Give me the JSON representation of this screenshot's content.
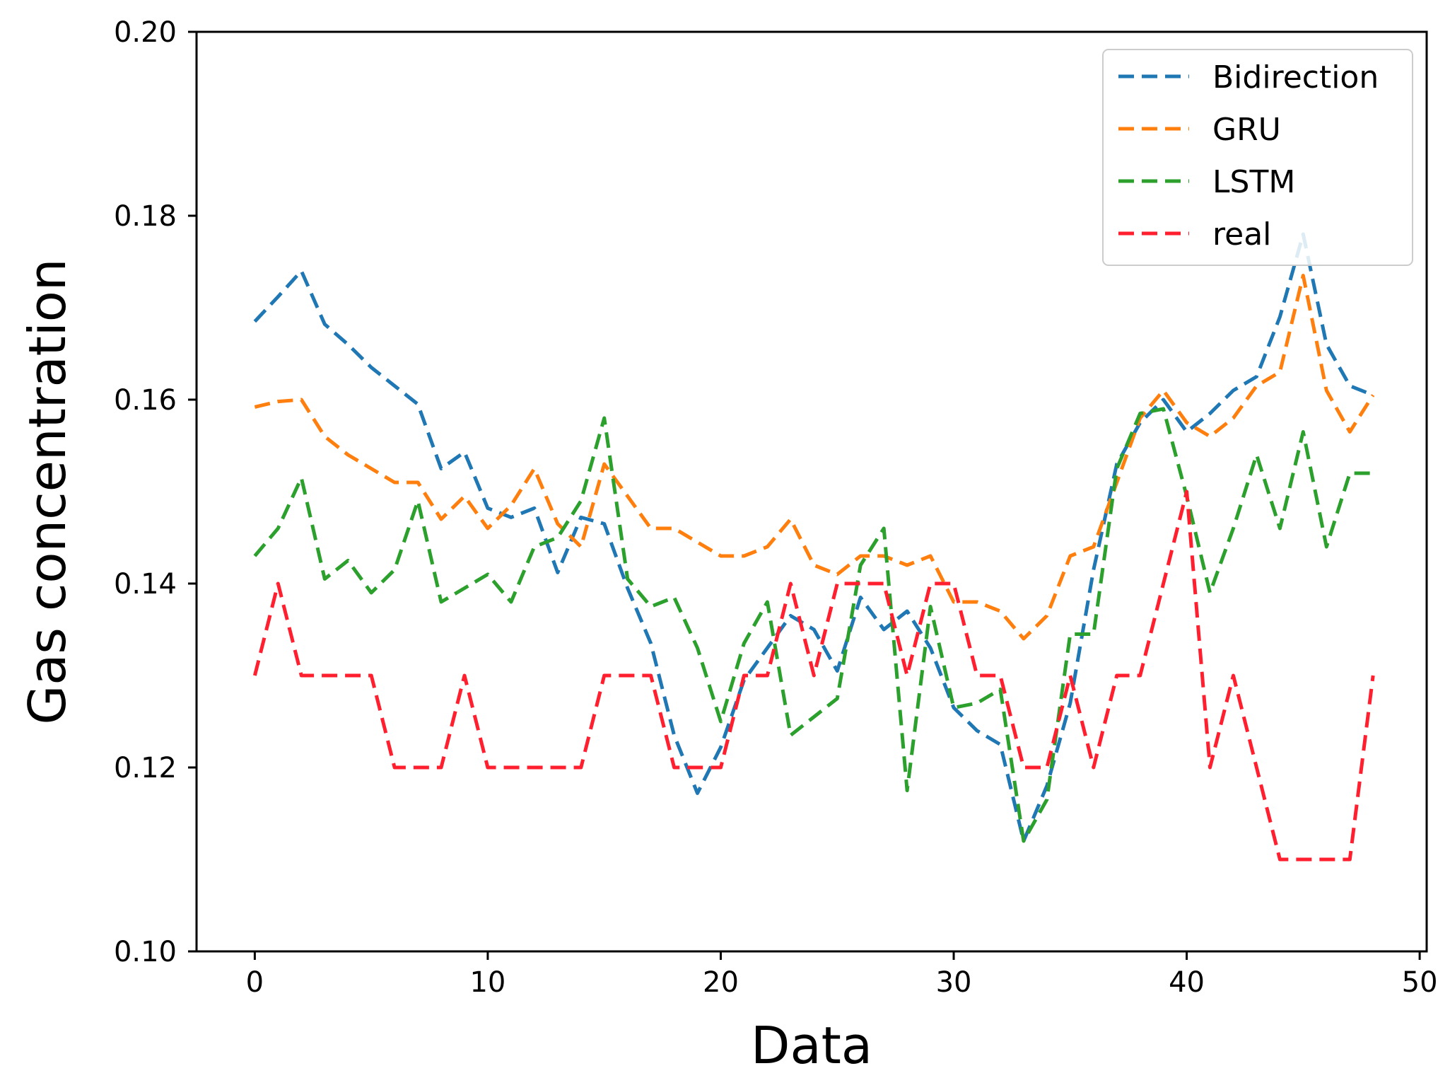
{
  "chart_data": {
    "type": "line",
    "title": "",
    "xlabel": "Data",
    "ylabel": "Gas concentration",
    "xlim": [
      -2.5,
      50.3
    ],
    "ylim": [
      0.1,
      0.2
    ],
    "xticks": [
      0,
      10,
      20,
      30,
      40,
      50
    ],
    "yticks": [
      0.1,
      0.12,
      0.14,
      0.16,
      0.18,
      0.2
    ],
    "ytick_labels": [
      "0.10",
      "0.12",
      "0.14",
      "0.16",
      "0.18",
      "0.20"
    ],
    "grid": false,
    "legend_position": "top-right",
    "line_style": "dashed",
    "x": [
      0,
      1,
      2,
      3,
      4,
      5,
      6,
      7,
      8,
      9,
      10,
      11,
      12,
      13,
      14,
      15,
      16,
      17,
      18,
      19,
      20,
      21,
      22,
      23,
      24,
      25,
      26,
      27,
      28,
      29,
      30,
      31,
      32,
      33,
      34,
      35,
      36,
      37,
      38,
      39,
      40,
      41,
      42,
      43,
      44,
      45,
      46,
      47,
      48
    ],
    "series": [
      {
        "name": "Bidirection",
        "color": "#1f77b4",
        "values": [
          0.1685,
          0.1712,
          0.174,
          0.1682,
          0.166,
          0.1635,
          0.1615,
          0.1595,
          0.1525,
          0.1543,
          0.1482,
          0.1472,
          0.1482,
          0.1412,
          0.1472,
          0.1465,
          0.1395,
          0.1335,
          0.1235,
          0.1172,
          0.1222,
          0.1295,
          0.133,
          0.1365,
          0.135,
          0.1305,
          0.1385,
          0.135,
          0.137,
          0.133,
          0.1265,
          0.124,
          0.1225,
          0.112,
          0.118,
          0.127,
          0.1415,
          0.153,
          0.1575,
          0.16,
          0.1565,
          0.1585,
          0.161,
          0.1625,
          0.169,
          0.178,
          0.166,
          0.1615,
          0.1605
        ]
      },
      {
        "name": "GRU",
        "color": "#ff7f0e",
        "values": [
          0.1592,
          0.1598,
          0.16,
          0.156,
          0.154,
          0.1525,
          0.151,
          0.151,
          0.147,
          0.1495,
          0.146,
          0.1485,
          0.1525,
          0.1465,
          0.144,
          0.153,
          0.1495,
          0.146,
          0.146,
          0.1445,
          0.143,
          0.143,
          0.144,
          0.147,
          0.142,
          0.141,
          0.143,
          0.143,
          0.142,
          0.143,
          0.138,
          0.138,
          0.137,
          0.134,
          0.1365,
          0.143,
          0.144,
          0.151,
          0.158,
          0.161,
          0.1575,
          0.156,
          0.158,
          0.1615,
          0.163,
          0.1735,
          0.161,
          0.1565,
          0.1605
        ]
      },
      {
        "name": "LSTM",
        "color": "#2ca02c",
        "values": [
          0.143,
          0.146,
          0.1515,
          0.1405,
          0.1425,
          0.139,
          0.1415,
          0.149,
          0.138,
          0.1395,
          0.141,
          0.138,
          0.144,
          0.145,
          0.149,
          0.158,
          0.1405,
          0.1375,
          0.1385,
          0.133,
          0.125,
          0.1335,
          0.138,
          0.1235,
          0.1255,
          0.1275,
          0.142,
          0.146,
          0.1175,
          0.1375,
          0.1265,
          0.127,
          0.1285,
          0.112,
          0.1165,
          0.1345,
          0.1345,
          0.1525,
          0.1585,
          0.159,
          0.1495,
          0.139,
          0.146,
          0.154,
          0.146,
          0.1565,
          0.144,
          0.152,
          0.152
        ]
      },
      {
        "name": "real",
        "color": "#ff1f2e",
        "values": [
          0.13,
          0.14,
          0.13,
          0.13,
          0.13,
          0.13,
          0.12,
          0.12,
          0.12,
          0.13,
          0.12,
          0.12,
          0.12,
          0.12,
          0.12,
          0.13,
          0.13,
          0.13,
          0.12,
          0.12,
          0.12,
          0.13,
          0.13,
          0.14,
          0.13,
          0.14,
          0.14,
          0.14,
          0.13,
          0.14,
          0.14,
          0.13,
          0.13,
          0.12,
          0.12,
          0.13,
          0.12,
          0.13,
          0.13,
          0.14,
          0.15,
          0.12,
          0.13,
          0.12,
          0.11,
          0.11,
          0.11,
          0.11,
          0.13
        ]
      }
    ]
  }
}
